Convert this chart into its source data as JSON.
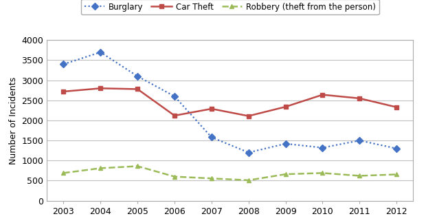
{
  "years": [
    2003,
    2004,
    2005,
    2006,
    2007,
    2008,
    2009,
    2010,
    2011,
    2012
  ],
  "burglary": [
    3400,
    3700,
    3100,
    2600,
    1580,
    1200,
    1420,
    1320,
    1500,
    1300
  ],
  "car_theft": [
    2720,
    2800,
    2780,
    2120,
    2290,
    2110,
    2340,
    2640,
    2550,
    2330
  ],
  "robbery": [
    690,
    810,
    860,
    600,
    555,
    510,
    660,
    690,
    620,
    655
  ],
  "burglary_color": "#4472C4",
  "car_theft_color": "#BE4B48",
  "robbery_color": "#9BBB59",
  "ylabel": "Number of Incidents",
  "ylim": [
    0,
    4000
  ],
  "yticks": [
    0,
    500,
    1000,
    1500,
    2000,
    2500,
    3000,
    3500,
    4000
  ],
  "legend_labels": [
    "Burglary",
    "Car Theft",
    "Robbery (theft from the person)"
  ],
  "background_color": "#ffffff",
  "plot_bg_color": "#ffffff",
  "grid_color": "#C0C0C0",
  "spine_color": "#AAAAAA"
}
